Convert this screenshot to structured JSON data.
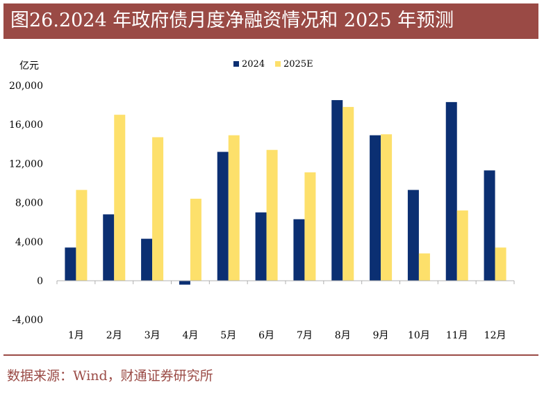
{
  "title": "图26.2024 年政府债月度净融资情况和 2025 年预测",
  "source": "数据来源：Wind，财通证券研究所",
  "colors": {
    "title_bg": "#9a4a45",
    "series_2024": "#0b2f72",
    "series_2025E": "#fde06b",
    "axis": "#b0b0b0"
  },
  "chart_data": {
    "type": "bar",
    "unit_label": "亿元",
    "categories": [
      "1月",
      "2月",
      "3月",
      "4月",
      "5月",
      "6月",
      "7月",
      "8月",
      "9月",
      "10月",
      "11月",
      "12月"
    ],
    "series": [
      {
        "name": "2024",
        "color": "#0b2f72",
        "values": [
          3400,
          6800,
          4300,
          -400,
          13200,
          7000,
          6300,
          18500,
          14900,
          9300,
          18300,
          11300
        ]
      },
      {
        "name": "2025E",
        "color": "#fde06b",
        "values": [
          9300,
          17000,
          14700,
          8400,
          14900,
          13400,
          11100,
          17800,
          15000,
          2800,
          7200,
          3400
        ]
      }
    ],
    "ylim": [
      -4000,
      20000
    ],
    "yticks": [
      -4000,
      0,
      4000,
      8000,
      12000,
      16000,
      20000
    ],
    "ytick_labels": [
      "-4,000",
      "0",
      "4,000",
      "8,000",
      "12,000",
      "16,000",
      "20,000"
    ],
    "legend_position": "top-center",
    "grid": false
  }
}
